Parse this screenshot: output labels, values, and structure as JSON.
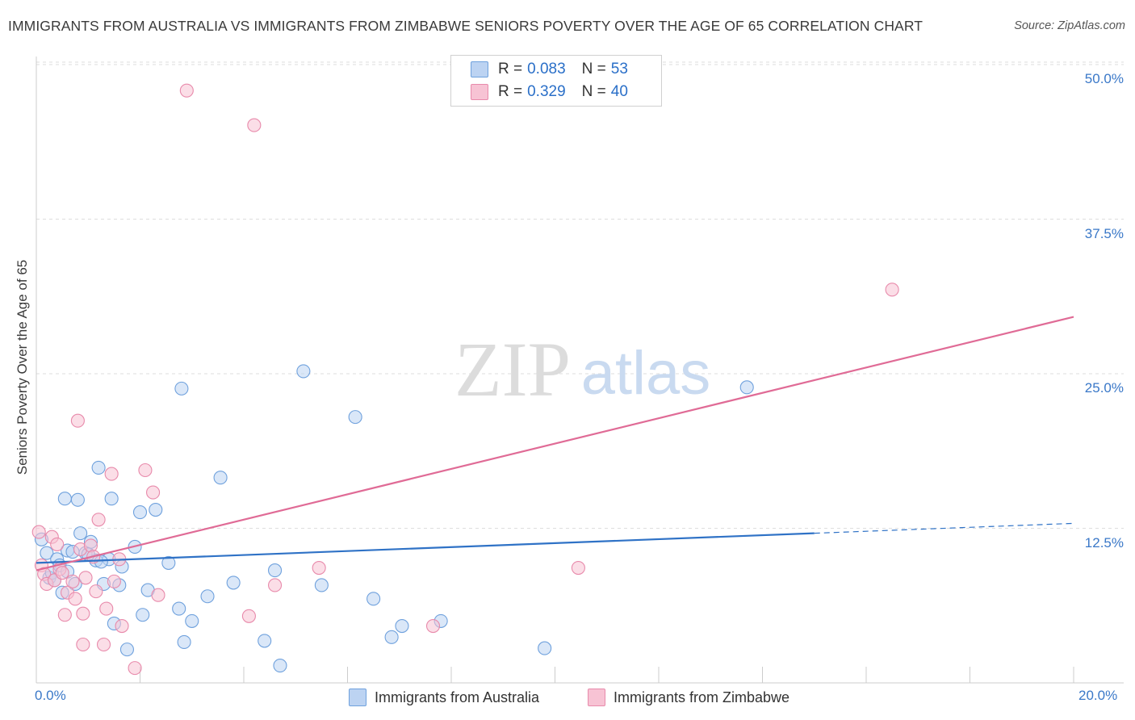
{
  "title": "IMMIGRANTS FROM AUSTRALIA VS IMMIGRANTS FROM ZIMBABWE SENIORS POVERTY OVER THE AGE OF 65 CORRELATION CHART",
  "source": "Source: ZipAtlas.com",
  "watermark": {
    "zip": "ZIP",
    "atlas": "atlas"
  },
  "legend": {
    "r_label": "R =",
    "n_label": "N =",
    "series1": {
      "r": "0.083",
      "n": "53"
    },
    "series2": {
      "r": "0.329",
      "n": "40"
    }
  },
  "bottom_legend": {
    "series1": "Immigrants from Australia",
    "series2": "Immigrants from Zimbabwe"
  },
  "chart_data": {
    "type": "scatter",
    "title": "IMMIGRANTS FROM AUSTRALIA VS IMMIGRANTS FROM ZIMBABWE SENIORS POVERTY OVER THE AGE OF 65 CORRELATION CHART",
    "xlabel": "",
    "ylabel": "Seniors Poverty Over the Age of 65",
    "xlim": [
      0,
      20
    ],
    "ylim": [
      0,
      50
    ],
    "x_tick_labels": [
      "0.0%",
      "20.0%"
    ],
    "y_ticks": [
      12.5,
      25.0,
      37.5,
      50.0
    ],
    "y_tick_labels": [
      "12.5%",
      "25.0%",
      "37.5%",
      "50.0%"
    ],
    "grid": true,
    "legend_position": "top-center",
    "series": [
      {
        "name": "Immigrants from Australia",
        "color": "#6fa1dd",
        "fill": "#bcd3f2",
        "line_color": "#2f72c6",
        "r": 0.083,
        "n": 53,
        "trend": {
          "x": [
            0,
            15
          ],
          "y": [
            9.7,
            12.1
          ]
        },
        "trend_dashed": {
          "x": [
            15,
            20
          ],
          "y": [
            12.1,
            12.9
          ]
        },
        "points": [
          [
            0.1,
            11.6
          ],
          [
            0.2,
            10.5
          ],
          [
            0.25,
            8.5
          ],
          [
            0.3,
            8.9
          ],
          [
            0.35,
            8.3
          ],
          [
            0.4,
            10.0
          ],
          [
            0.45,
            9.5
          ],
          [
            0.5,
            7.3
          ],
          [
            0.55,
            14.9
          ],
          [
            0.6,
            10.7
          ],
          [
            0.7,
            10.6
          ],
          [
            0.75,
            8.0
          ],
          [
            0.8,
            14.8
          ],
          [
            0.85,
            12.1
          ],
          [
            0.95,
            10.5
          ],
          [
            1.05,
            11.4
          ],
          [
            1.2,
            17.4
          ],
          [
            1.3,
            8.0
          ],
          [
            1.15,
            9.9
          ],
          [
            1.4,
            10.0
          ],
          [
            1.45,
            14.9
          ],
          [
            1.5,
            4.8
          ],
          [
            1.6,
            7.9
          ],
          [
            1.65,
            9.4
          ],
          [
            1.75,
            2.7
          ],
          [
            1.9,
            11.0
          ],
          [
            2.0,
            13.8
          ],
          [
            2.05,
            5.5
          ],
          [
            2.15,
            7.5
          ],
          [
            2.3,
            14.0
          ],
          [
            2.55,
            9.7
          ],
          [
            2.8,
            23.8
          ],
          [
            2.75,
            6.0
          ],
          [
            2.85,
            3.3
          ],
          [
            3.0,
            5.0
          ],
          [
            3.3,
            7.0
          ],
          [
            3.55,
            16.6
          ],
          [
            3.8,
            8.1
          ],
          [
            4.4,
            3.4
          ],
          [
            4.6,
            9.1
          ],
          [
            4.7,
            1.4
          ],
          [
            5.15,
            25.2
          ],
          [
            5.5,
            7.9
          ],
          [
            6.15,
            21.5
          ],
          [
            6.5,
            6.8
          ],
          [
            6.85,
            3.7
          ],
          [
            7.05,
            4.6
          ],
          [
            7.8,
            5.0
          ],
          [
            9.8,
            2.8
          ],
          [
            13.7,
            23.9
          ],
          [
            0.6,
            9.0
          ],
          [
            1.0,
            10.4
          ],
          [
            1.25,
            9.8
          ]
        ]
      },
      {
        "name": "Immigrants from Zimbabwe",
        "color": "#e88aab",
        "fill": "#f7c3d4",
        "line_color": "#e06b96",
        "r": 0.329,
        "n": 40,
        "trend": {
          "x": [
            0,
            20
          ],
          "y": [
            9.1,
            29.6
          ]
        },
        "points": [
          [
            0.05,
            12.2
          ],
          [
            0.1,
            9.5
          ],
          [
            0.15,
            8.8
          ],
          [
            0.2,
            8.0
          ],
          [
            0.3,
            11.8
          ],
          [
            0.35,
            8.3
          ],
          [
            0.4,
            11.2
          ],
          [
            0.45,
            9.2
          ],
          [
            0.5,
            8.9
          ],
          [
            0.55,
            5.5
          ],
          [
            0.6,
            7.3
          ],
          [
            0.7,
            8.2
          ],
          [
            0.75,
            6.8
          ],
          [
            0.8,
            21.2
          ],
          [
            0.85,
            10.8
          ],
          [
            0.9,
            5.6
          ],
          [
            0.9,
            3.1
          ],
          [
            0.95,
            8.5
          ],
          [
            1.05,
            11.1
          ],
          [
            1.1,
            10.2
          ],
          [
            1.15,
            7.4
          ],
          [
            1.2,
            13.2
          ],
          [
            1.3,
            3.1
          ],
          [
            1.35,
            6.0
          ],
          [
            1.45,
            16.9
          ],
          [
            1.5,
            8.2
          ],
          [
            1.6,
            10.0
          ],
          [
            1.65,
            4.6
          ],
          [
            1.9,
            1.2
          ],
          [
            2.1,
            17.2
          ],
          [
            2.25,
            15.4
          ],
          [
            2.35,
            7.1
          ],
          [
            2.9,
            47.9
          ],
          [
            4.1,
            5.4
          ],
          [
            4.2,
            45.1
          ],
          [
            4.6,
            7.9
          ],
          [
            5.45,
            9.3
          ],
          [
            7.65,
            4.6
          ],
          [
            10.45,
            9.3
          ],
          [
            16.5,
            31.8
          ]
        ]
      }
    ]
  }
}
